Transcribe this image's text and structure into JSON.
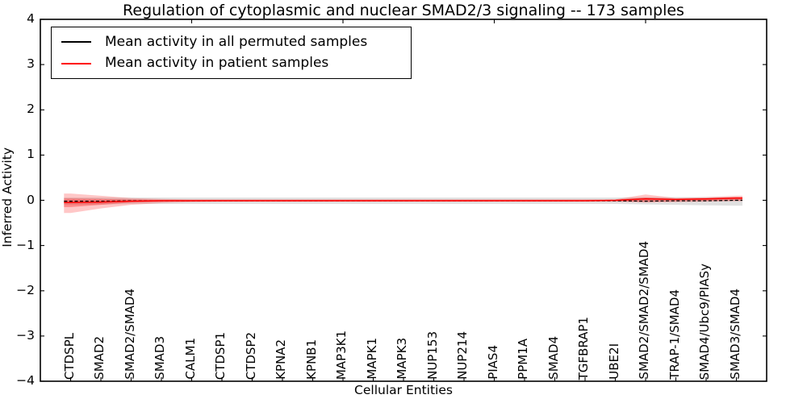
{
  "title": "Regulation of cytoplasmic and nuclear SMAD2/3 signaling -- 173 samples",
  "axes": {
    "ylabel": "Inferred Activity",
    "xlabel": "Cellular Entities"
  },
  "legend": {
    "items": [
      {
        "label": "Mean activity in all permuted samples",
        "color": "#000000"
      },
      {
        "label": "Mean activity in patient samples",
        "color": "#ff0000"
      }
    ]
  },
  "chart_data": {
    "type": "line",
    "title": "Regulation of cytoplasmic and nuclear SMAD2/3 signaling -- 173 samples",
    "xlabel": "Cellular Entities",
    "ylabel": "Inferred Activity",
    "ylim": [
      -4,
      4
    ],
    "xlim": [
      0,
      24
    ],
    "grid": false,
    "legend_position": "upper left",
    "yticks": [
      4,
      3,
      2,
      1,
      0,
      -1,
      -2,
      -3,
      -4
    ],
    "top_axis_ticks": [
      5,
      10,
      15,
      20
    ],
    "categories": [
      "CTDSPL",
      "SMAD2",
      "SMAD2/SMAD4",
      "SMAD3",
      "CALM1",
      "CTDSP1",
      "CTDSP2",
      "KPNA2",
      "KPNB1",
      "MAP3K1",
      "MAPK1",
      "MAPK3",
      "NUP153",
      "NUP214",
      "PIAS4",
      "PPM1A",
      "SMAD4",
      "TGFBRAP1",
      "UBE2I",
      "SMAD2/SMAD2/SMAD4",
      "TRAP-1/SMAD4",
      "SMAD4/Ubc9/PIASy",
      "SMAD3/SMAD4"
    ],
    "series": [
      {
        "name": "Mean activity in all permuted samples",
        "color": "#000000",
        "style": "dashed",
        "values": [
          -0.02,
          -0.02,
          -0.01,
          -0.01,
          -0.01,
          -0.01,
          -0.01,
          -0.01,
          -0.01,
          -0.01,
          -0.01,
          -0.01,
          -0.01,
          -0.01,
          -0.01,
          -0.01,
          -0.01,
          -0.01,
          -0.01,
          -0.02,
          -0.01,
          -0.01,
          0.0
        ]
      },
      {
        "name": "Mean activity in patient samples",
        "color": "#ff0000",
        "style": "solid",
        "values": [
          -0.05,
          -0.04,
          -0.02,
          -0.01,
          -0.01,
          -0.01,
          -0.01,
          -0.01,
          -0.01,
          -0.01,
          -0.01,
          -0.01,
          -0.01,
          -0.01,
          -0.01,
          -0.01,
          -0.01,
          -0.01,
          0.0,
          0.03,
          0.02,
          0.03,
          0.05
        ]
      }
    ],
    "bands": [
      {
        "name": "permuted-samples-std-band",
        "color": "#999999",
        "opacity": 0.3,
        "upper": [
          0.06,
          0.06,
          0.06,
          0.06,
          0.06,
          0.06,
          0.06,
          0.06,
          0.06,
          0.06,
          0.06,
          0.06,
          0.06,
          0.06,
          0.06,
          0.06,
          0.06,
          0.06,
          0.06,
          0.07,
          0.07,
          0.07,
          0.07
        ],
        "lower": [
          -0.1,
          -0.09,
          -0.08,
          -0.08,
          -0.08,
          -0.08,
          -0.08,
          -0.08,
          -0.08,
          -0.08,
          -0.08,
          -0.08,
          -0.08,
          -0.08,
          -0.08,
          -0.08,
          -0.08,
          -0.08,
          -0.08,
          -0.09,
          -0.1,
          -0.11,
          -0.12
        ]
      },
      {
        "name": "patient-samples-std-band-outer",
        "color": "#ff0000",
        "opacity": 0.22,
        "upper": [
          0.15,
          0.1,
          0.05,
          0.03,
          0.02,
          0.02,
          0.02,
          0.02,
          0.02,
          0.02,
          0.02,
          0.02,
          0.02,
          0.02,
          0.02,
          0.02,
          0.02,
          0.02,
          0.02,
          0.13,
          0.05,
          0.07,
          0.1
        ],
        "lower": [
          -0.28,
          -0.18,
          -0.1,
          -0.06,
          -0.04,
          -0.03,
          -0.03,
          -0.03,
          -0.03,
          -0.03,
          -0.03,
          -0.03,
          -0.03,
          -0.03,
          -0.03,
          -0.03,
          -0.03,
          -0.03,
          -0.03,
          -0.05,
          -0.04,
          -0.03,
          -0.02
        ]
      },
      {
        "name": "patient-samples-std-band-inner",
        "color": "#ff0000",
        "opacity": 0.3,
        "upper": [
          0.04,
          0.03,
          0.02,
          0.01,
          0.01,
          0.01,
          0.01,
          0.01,
          0.01,
          0.01,
          0.01,
          0.01,
          0.01,
          0.01,
          0.01,
          0.01,
          0.01,
          0.01,
          0.01,
          0.06,
          0.03,
          0.04,
          0.07
        ],
        "lower": [
          -0.15,
          -0.1,
          -0.05,
          -0.03,
          -0.02,
          -0.02,
          -0.02,
          -0.02,
          -0.02,
          -0.02,
          -0.02,
          -0.02,
          -0.02,
          -0.02,
          -0.02,
          -0.02,
          -0.02,
          -0.02,
          -0.02,
          -0.03,
          -0.02,
          -0.01,
          0.0
        ]
      }
    ]
  }
}
